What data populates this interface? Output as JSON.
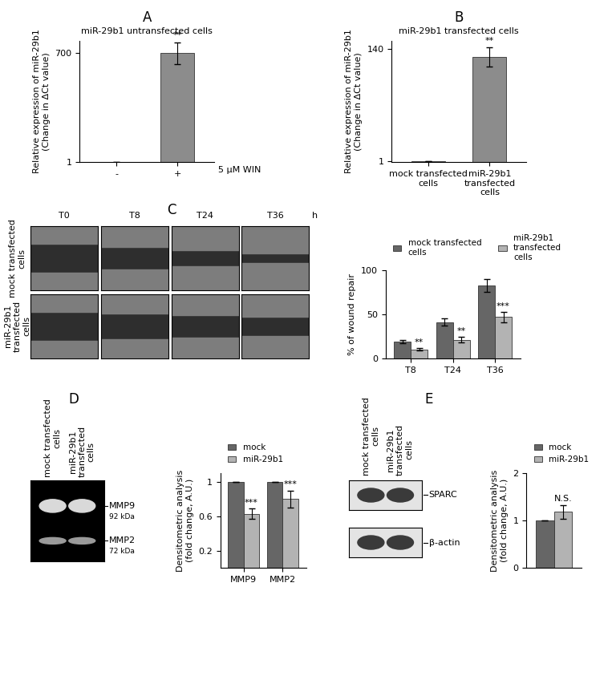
{
  "chart_data": [
    {
      "panel": "A",
      "type": "bar",
      "title": "miR-29b1 untransfected cells",
      "y_label": "Relative expression of miR-29b1\n(Change in ΔCt value)",
      "x_label": "5 μM WIN",
      "categories": [
        "-",
        "+"
      ],
      "values": [
        1,
        700
      ],
      "errors": [
        0.1,
        70
      ],
      "annotations": [
        null,
        "**"
      ],
      "color": "#8c8c8c",
      "ylim": [
        0,
        780
      ],
      "yticks": [
        1,
        700
      ]
    },
    {
      "panel": "B",
      "type": "bar",
      "title": "miR-29b1 transfected cells",
      "y_label": "Relative expression of miR-29b1\n(Change in ΔCt value)",
      "categories": [
        "mock transfected cells",
        "miR-29b1 transfected cells"
      ],
      "values": [
        1,
        130
      ],
      "errors": [
        0.05,
        12
      ],
      "annotations": [
        null,
        "**"
      ],
      "color": "#8c8c8c",
      "ylim": [
        0,
        150
      ],
      "yticks": [
        1,
        140
      ]
    },
    {
      "panel": "C",
      "type": "bar",
      "y_label": "% of wound repair",
      "categories": [
        "T8",
        "T24",
        "T36"
      ],
      "series": [
        {
          "name": "mock transfected cells",
          "color": "#666666",
          "values": [
            19,
            41,
            83
          ],
          "errors": [
            2,
            4,
            7
          ]
        },
        {
          "name": "miR-29b1 transfected cells",
          "color": "#b3b3b3",
          "values": [
            10,
            21,
            47
          ],
          "errors": [
            1.5,
            3,
            6
          ],
          "annotations": [
            "**",
            "**",
            "***"
          ]
        }
      ],
      "ylim": [
        0,
        100
      ],
      "yticks": [
        0,
        50,
        100
      ],
      "legend": "lower left"
    },
    {
      "panel": "D",
      "type": "bar",
      "y_label": "Densitometric analysis\n(fold change, A.U.)",
      "categories": [
        "MMP9",
        "MMP2"
      ],
      "series": [
        {
          "name": "mock",
          "color": "#666666",
          "values": [
            1,
            1
          ],
          "errors": [
            0,
            0
          ]
        },
        {
          "name": "miR-29b1",
          "color": "#b3b3b3",
          "values": [
            0.63,
            0.8
          ],
          "errors": [
            0.06,
            0.1
          ],
          "annotations": [
            "***",
            "***"
          ]
        }
      ],
      "ylim": [
        0,
        1.1
      ],
      "yticks": [
        0.2,
        0.6,
        1
      ],
      "legend": "lower left"
    },
    {
      "panel": "E",
      "type": "bar",
      "y_label": "Densitometric analysis\n(fold change, A.U.)",
      "categories": [
        null
      ],
      "series": [
        {
          "name": "mock",
          "color": "#666666",
          "values": [
            1
          ],
          "errors": [
            0
          ]
        },
        {
          "name": "miR-29b1",
          "color": "#b3b3b3",
          "values": [
            1.18
          ],
          "errors": [
            0.15
          ],
          "annotations": [
            "N.S."
          ]
        }
      ],
      "ylim": [
        0,
        2
      ],
      "yticks": [
        0,
        1,
        2
      ],
      "legend": "lower left"
    }
  ],
  "images": {
    "panel": "C",
    "columns": [
      "T0",
      "T8",
      "T24",
      "T36"
    ],
    "unit": "h",
    "rows": [
      "mock transfected cells",
      "miR-29b1 transfected cells"
    ]
  },
  "zymogram": {
    "panel": "D",
    "lanes": [
      "mock transfected cells",
      "miR-29b1 transfected cells"
    ],
    "bands": [
      {
        "name": "MMP9",
        "size": "92 kDa"
      },
      {
        "name": "MMP2",
        "size": "72 kDa"
      }
    ]
  },
  "western_blot": {
    "panel": "E",
    "lanes": [
      "mock transfected cells",
      "miR-29b1 transfected cells"
    ],
    "bands": [
      "SPARC",
      "β-actin"
    ]
  }
}
